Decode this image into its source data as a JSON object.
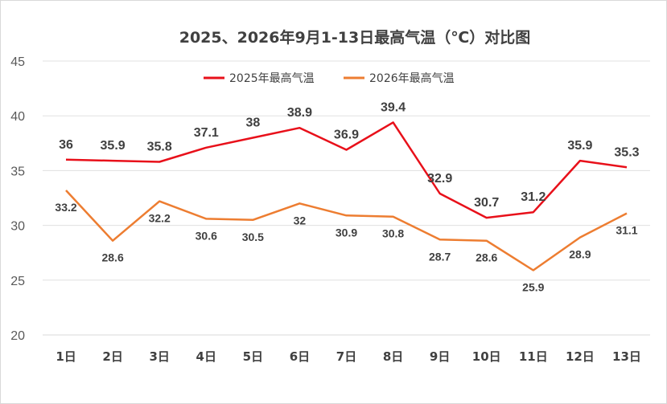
{
  "chart_data": {
    "type": "line",
    "title": "2025、2026年9月1-13日最高气温（℃）对比图",
    "categories": [
      "1日",
      "2日",
      "3日",
      "4日",
      "5日",
      "6日",
      "7日",
      "8日",
      "9日",
      "10日",
      "11日",
      "12日",
      "13日"
    ],
    "series": [
      {
        "name": "2025年最高气温",
        "color": "#e8101a",
        "values": [
          36,
          35.9,
          35.8,
          37.1,
          38,
          38.9,
          36.9,
          39.4,
          32.9,
          30.7,
          31.2,
          35.9,
          35.3
        ],
        "labels": [
          "36",
          "35.9",
          "35.8",
          "37.1",
          "38",
          "38.9",
          "36.9",
          "39.4",
          "32.9",
          "30.7",
          "31.2",
          "35.9",
          "35.3"
        ]
      },
      {
        "name": "2026年最高气温",
        "color": "#ed7d31",
        "values": [
          33.2,
          28.6,
          32.2,
          30.6,
          30.5,
          32,
          30.9,
          30.8,
          28.7,
          28.6,
          25.9,
          28.9,
          31.1
        ],
        "labels": [
          "33.2",
          "28.6",
          "32.2",
          "30.6",
          "30.5",
          "32",
          "30.9",
          "30.8",
          "28.7",
          "28.6",
          "25.9",
          "28.9",
          "31.1"
        ]
      }
    ],
    "ylim": [
      20,
      45
    ],
    "yticks": [
      "20",
      "25",
      "30",
      "35",
      "40",
      "45"
    ],
    "grid": true,
    "legend_position": "top"
  }
}
